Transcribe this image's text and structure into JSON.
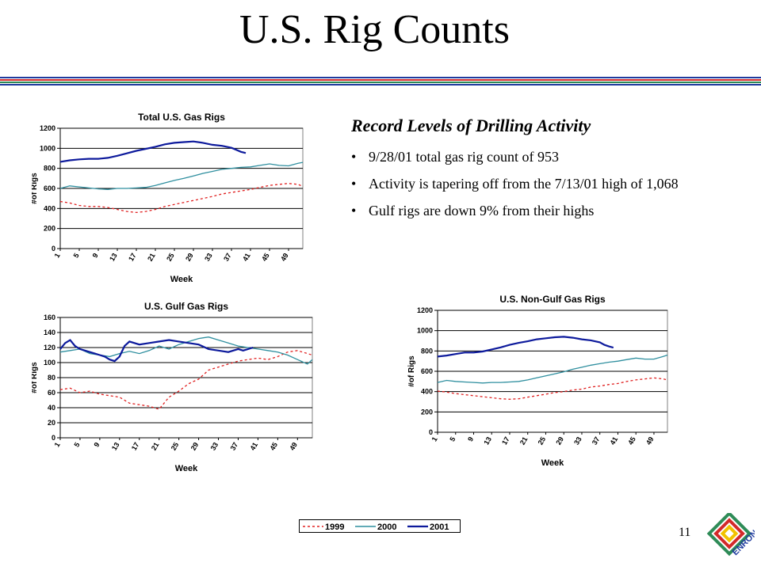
{
  "slide": {
    "title": "U.S. Rig Counts",
    "page_number": "11",
    "logo_text": "ENRON",
    "rule_colors": [
      "#1f3b9e",
      "#d32a2a",
      "#2e8b57",
      "#1f3b9e"
    ]
  },
  "panel": {
    "heading": "Record Levels of Drilling Activity",
    "bullets": [
      "9/28/01 total gas rig count of 953",
      "Activity is tapering off from the 7/13/01 high of 1,068",
      "Gulf rigs are down 9% from their highs"
    ]
  },
  "legend": {
    "entries": [
      {
        "name": "1999",
        "color": "#e02020",
        "dash": "3,3"
      },
      {
        "name": "2000",
        "color": "#2f8f9f",
        "dash": ""
      },
      {
        "name": "2001",
        "color": "#0d1a9c",
        "dash": ""
      }
    ]
  },
  "chart_data": [
    {
      "type": "line",
      "title": "Total U.S. Gas Rigs",
      "xlabel": "Week",
      "ylabel": "#of Rigs",
      "ylim": [
        0,
        1200
      ],
      "yticks": [
        0,
        200,
        400,
        600,
        800,
        1000,
        1200
      ],
      "xlim": [
        1,
        52
      ],
      "xticks": [
        1,
        5,
        9,
        13,
        17,
        21,
        25,
        29,
        33,
        37,
        41,
        45,
        49
      ],
      "grid": true,
      "series": [
        {
          "name": "1999",
          "x": [
            1,
            3,
            5,
            7,
            9,
            11,
            13,
            15,
            17,
            19,
            21,
            23,
            25,
            27,
            29,
            31,
            33,
            35,
            37,
            39,
            41,
            43,
            45,
            47,
            49,
            51,
            52
          ],
          "y": [
            470,
            455,
            430,
            420,
            420,
            410,
            390,
            370,
            360,
            370,
            390,
            420,
            440,
            460,
            480,
            500,
            520,
            545,
            560,
            575,
            590,
            610,
            630,
            640,
            650,
            640,
            620
          ]
        },
        {
          "name": "2000",
          "x": [
            1,
            3,
            5,
            7,
            9,
            11,
            13,
            15,
            17,
            19,
            21,
            23,
            25,
            27,
            29,
            31,
            33,
            35,
            37,
            39,
            41,
            43,
            45,
            47,
            49,
            51,
            52
          ],
          "y": [
            600,
            625,
            615,
            605,
            595,
            590,
            600,
            600,
            605,
            610,
            630,
            655,
            680,
            700,
            725,
            750,
            770,
            790,
            800,
            810,
            815,
            830,
            845,
            830,
            825,
            850,
            860
          ]
        },
        {
          "name": "2001",
          "x": [
            1,
            3,
            5,
            7,
            9,
            11,
            13,
            15,
            17,
            19,
            21,
            23,
            25,
            27,
            29,
            31,
            33,
            35,
            37,
            38,
            39,
            40
          ],
          "y": [
            865,
            880,
            890,
            895,
            895,
            905,
            925,
            950,
            975,
            995,
            1015,
            1040,
            1055,
            1062,
            1068,
            1055,
            1035,
            1025,
            1005,
            985,
            965,
            953
          ]
        }
      ]
    },
    {
      "type": "line",
      "title": "U.S. Gulf Gas Rigs",
      "xlabel": "Week",
      "ylabel": "#of Rigs",
      "ylim": [
        0,
        160
      ],
      "yticks": [
        0,
        20,
        40,
        60,
        80,
        100,
        120,
        140,
        160
      ],
      "xlim": [
        1,
        52
      ],
      "xticks": [
        1,
        5,
        9,
        13,
        17,
        21,
        25,
        29,
        33,
        37,
        41,
        45,
        49
      ],
      "grid": true,
      "series": [
        {
          "name": "1999",
          "x": [
            1,
            3,
            5,
            7,
            9,
            11,
            13,
            15,
            17,
            19,
            21,
            23,
            25,
            27,
            29,
            31,
            33,
            35,
            37,
            39,
            41,
            43,
            45,
            47,
            49,
            51,
            52
          ],
          "y": [
            64,
            66,
            60,
            62,
            58,
            56,
            54,
            46,
            44,
            42,
            38,
            54,
            62,
            72,
            78,
            90,
            94,
            98,
            102,
            104,
            106,
            104,
            108,
            114,
            116,
            112,
            110
          ]
        },
        {
          "name": "2000",
          "x": [
            1,
            3,
            5,
            7,
            9,
            11,
            13,
            15,
            17,
            19,
            21,
            23,
            25,
            27,
            29,
            31,
            33,
            35,
            37,
            39,
            41,
            43,
            45,
            47,
            49,
            51,
            52
          ],
          "y": [
            114,
            116,
            118,
            112,
            110,
            108,
            112,
            115,
            112,
            116,
            122,
            118,
            124,
            128,
            132,
            134,
            130,
            126,
            122,
            120,
            118,
            116,
            114,
            110,
            104,
            98,
            104
          ]
        },
        {
          "name": "2001",
          "x": [
            1,
            2,
            3,
            4,
            5,
            6,
            7,
            8,
            9,
            10,
            11,
            12,
            13,
            14,
            15,
            17,
            19,
            21,
            23,
            25,
            27,
            29,
            31,
            33,
            35,
            37,
            38,
            39,
            40
          ],
          "y": [
            118,
            126,
            130,
            122,
            118,
            116,
            114,
            112,
            110,
            108,
            104,
            102,
            108,
            122,
            128,
            124,
            126,
            128,
            130,
            128,
            126,
            124,
            118,
            116,
            114,
            118,
            116,
            118,
            120
          ]
        }
      ]
    },
    {
      "type": "line",
      "title": "U.S. Non-Gulf Gas Rigs",
      "xlabel": "Week",
      "ylabel": "#of Rigs",
      "ylim": [
        0,
        1200
      ],
      "yticks": [
        0,
        200,
        400,
        600,
        800,
        1000,
        1200
      ],
      "xlim": [
        1,
        52
      ],
      "xticks": [
        1,
        5,
        9,
        13,
        17,
        21,
        25,
        29,
        33,
        37,
        41,
        45,
        49
      ],
      "grid": true,
      "series": [
        {
          "name": "1999",
          "x": [
            1,
            3,
            5,
            7,
            9,
            11,
            13,
            15,
            17,
            19,
            21,
            23,
            25,
            27,
            29,
            31,
            33,
            35,
            37,
            39,
            41,
            43,
            45,
            47,
            49,
            51,
            52
          ],
          "y": [
            405,
            395,
            380,
            370,
            360,
            350,
            340,
            330,
            325,
            330,
            345,
            360,
            375,
            390,
            400,
            415,
            425,
            445,
            455,
            470,
            480,
            500,
            515,
            525,
            535,
            525,
            515
          ]
        },
        {
          "name": "2000",
          "x": [
            1,
            3,
            5,
            7,
            9,
            11,
            13,
            15,
            17,
            19,
            21,
            23,
            25,
            27,
            29,
            31,
            33,
            35,
            37,
            39,
            41,
            43,
            45,
            47,
            49,
            51,
            52
          ],
          "y": [
            490,
            510,
            500,
            495,
            490,
            485,
            490,
            490,
            495,
            500,
            515,
            535,
            555,
            575,
            595,
            620,
            640,
            660,
            675,
            690,
            700,
            715,
            730,
            720,
            720,
            745,
            760
          ]
        },
        {
          "name": "2001",
          "x": [
            1,
            3,
            5,
            7,
            9,
            11,
            13,
            15,
            17,
            19,
            21,
            23,
            25,
            27,
            29,
            31,
            33,
            35,
            37,
            38,
            39,
            40
          ],
          "y": [
            745,
            755,
            770,
            785,
            785,
            795,
            815,
            835,
            860,
            880,
            895,
            915,
            925,
            935,
            940,
            930,
            915,
            905,
            885,
            860,
            845,
            833
          ]
        }
      ]
    }
  ]
}
